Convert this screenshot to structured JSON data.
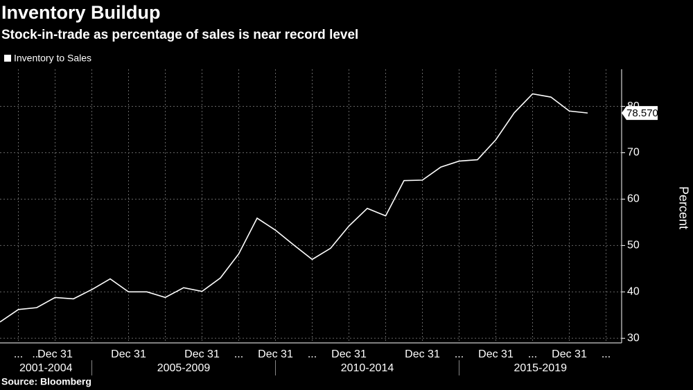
{
  "chart_data": {
    "type": "line",
    "title": "Inventory Buildup",
    "subtitle": "Stock-in-trade as percentage of sales is near record level",
    "source": "Source: Bloomberg",
    "y_label": "Percent",
    "categories": [
      null,
      "...",
      "...",
      "Dec 31",
      null,
      null,
      null,
      "Dec 31",
      null,
      null,
      null,
      "Dec 31",
      null,
      "...",
      null,
      "Dec 31",
      null,
      "...",
      null,
      "Dec 31",
      null,
      null,
      null,
      "Dec 31",
      null,
      "...",
      null,
      "Dec 31",
      null,
      "...",
      null,
      "Dec 31",
      null,
      "..."
    ],
    "period_groups": [
      {
        "label": "2001-2004",
        "count": 5
      },
      {
        "label": "2005-2009",
        "count": 10
      },
      {
        "label": "2010-2014",
        "count": 10
      },
      {
        "label": "2015-2019",
        "count": 9
      }
    ],
    "series": [
      {
        "name": "Inventory to Sales",
        "color": "#ffffff",
        "values": [
          33.5,
          36.2,
          36.6,
          38.8,
          38.5,
          40.5,
          42.8,
          40.0,
          40.0,
          38.8,
          40.9,
          40.1,
          43.0,
          48.2,
          55.9,
          53.3,
          50.1,
          47.0,
          49.4,
          54.2,
          58.0,
          56.4,
          64.0,
          64.1,
          66.9,
          68.2,
          68.5,
          72.8,
          78.6,
          82.7,
          82.0,
          79.0,
          78.5706,
          null
        ]
      }
    ],
    "ylim": [
      29,
      88
    ],
    "yticks": [
      30,
      40,
      50,
      60,
      70,
      80
    ],
    "grid": true,
    "legend": "top-left"
  }
}
